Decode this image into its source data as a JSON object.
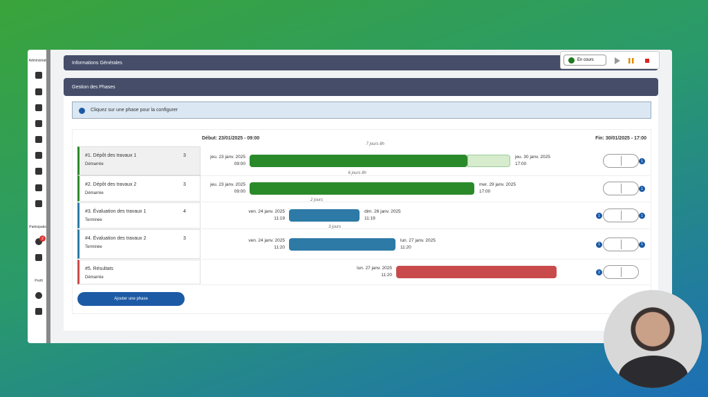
{
  "sidebar": {
    "sections": [
      "Administratio",
      "Participation",
      "Profil"
    ],
    "notification_count": "2"
  },
  "status_widget": {
    "label": "En cours"
  },
  "panels": {
    "info_title": "Informations Générales",
    "phases_title": "Gestion des Phases"
  },
  "hint": "Cliquez sur une phase pour la configurer",
  "timeline": {
    "start": "Début: 23/01/2025 - 09:00",
    "end": "Fin: 30/01/2025 - 17:00"
  },
  "phases": [
    {
      "name": "#1. Dépôt des travaux 1",
      "status": "Démarrée",
      "participants": "3",
      "duration": "7 jours 8h",
      "start_date": "jeu. 23 janv. 2025",
      "start_time": "09:00",
      "end_date": "jeu. 30 janv. 2025",
      "end_time": "17:00",
      "badge_left": null,
      "badge_right": "1"
    },
    {
      "name": "#2. Dépôt des travaux 2",
      "status": "Démarrée",
      "participants": "3",
      "duration": "6 jours 8h",
      "start_date": "jeu. 23 janv. 2025",
      "start_time": "09:00",
      "end_date": "mer. 29 janv. 2025",
      "end_time": "17:00",
      "badge_left": null,
      "badge_right": "1"
    },
    {
      "name": "#3. Évaluation des travaux 1",
      "status": "Terminée",
      "participants": "4",
      "duration": "2 jours",
      "start_date": "ven. 24 janv. 2025",
      "start_time": "11:19",
      "end_date": "dim. 26 janv. 2025",
      "end_time": "11:19",
      "badge_left": "1",
      "badge_right": "1"
    },
    {
      "name": "#4. Évaluation des travaux 2",
      "status": "Terminée",
      "participants": "3",
      "duration": "3 jours",
      "start_date": "ven. 24 janv. 2025",
      "start_time": "11:20",
      "end_date": "lun. 27 janv. 2025",
      "end_time": "11:20",
      "badge_left": "1",
      "badge_right": "1"
    },
    {
      "name": "#5. Résultats",
      "status": "Démarrée",
      "participants": null,
      "duration": null,
      "start_date": "lun. 27 janv. 2025",
      "start_time": "11:20",
      "end_date": null,
      "end_time": null,
      "badge_left": "2",
      "badge_right": null
    }
  ],
  "add_button": "Ajouter une phase"
}
